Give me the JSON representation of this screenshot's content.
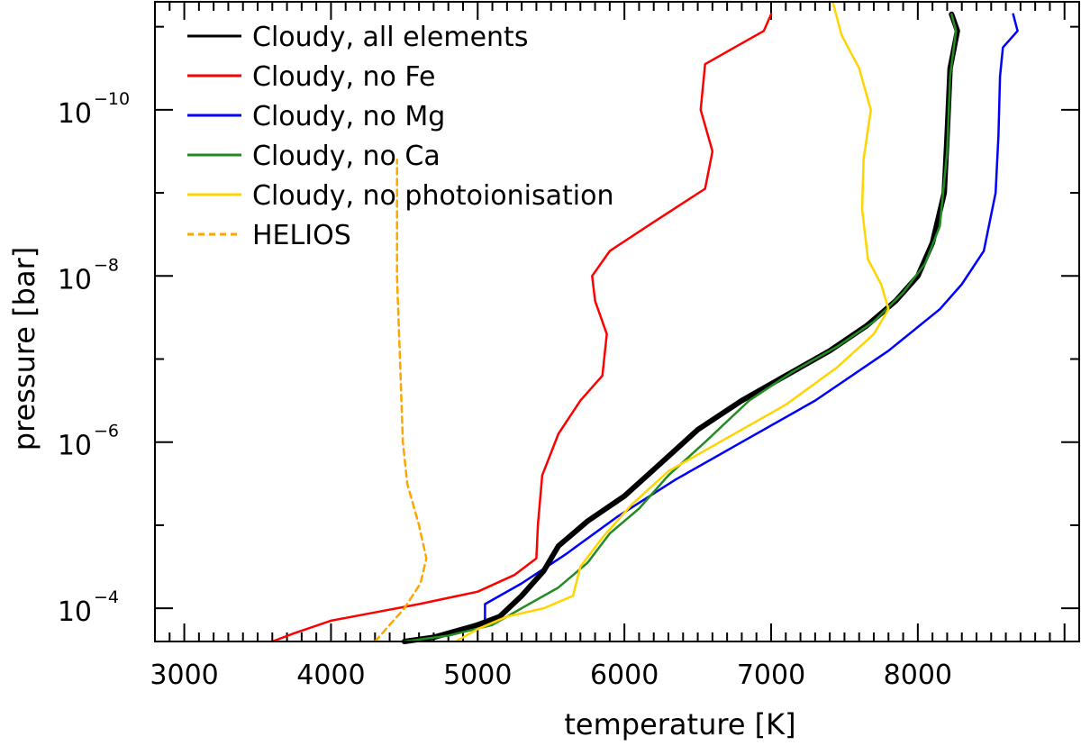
{
  "chart_data": {
    "type": "line",
    "xlabel": "temperature [K]",
    "ylabel": "pressure [bar]",
    "xlim": [
      2800,
      9100
    ],
    "ylog": true,
    "ylim_exponent": [
      -3.6,
      -11.3
    ],
    "x_ticks": [
      3000,
      4000,
      5000,
      6000,
      7000,
      8000
    ],
    "x_tick_labels": [
      "3000",
      "4000",
      "5000",
      "6000",
      "7000",
      "8000"
    ],
    "y_ticks": [
      {
        "base": "10",
        "exp": "−4",
        "value": -4
      },
      {
        "base": "10",
        "exp": "−6",
        "value": -6
      },
      {
        "base": "10",
        "exp": "−8",
        "value": -8
      },
      {
        "base": "10",
        "exp": "−10",
        "value": -10
      }
    ],
    "legend_position": "top-left",
    "series": [
      {
        "name": "Cloudy, all elements",
        "color": "#000000",
        "dash": "solid",
        "points": [
          [
            4500,
            -3.6
          ],
          [
            4700,
            -3.65
          ],
          [
            5000,
            -3.8
          ],
          [
            5150,
            -3.9
          ],
          [
            5300,
            -4.15
          ],
          [
            5450,
            -4.45
          ],
          [
            5550,
            -4.75
          ],
          [
            5750,
            -5.05
          ],
          [
            6000,
            -5.35
          ],
          [
            6250,
            -5.75
          ],
          [
            6500,
            -6.15
          ],
          [
            6800,
            -6.5
          ],
          [
            7100,
            -6.8
          ],
          [
            7400,
            -7.1
          ],
          [
            7650,
            -7.4
          ],
          [
            7850,
            -7.7
          ],
          [
            8000,
            -8.0
          ],
          [
            8100,
            -8.4
          ],
          [
            8180,
            -9.0
          ],
          [
            8200,
            -9.7
          ],
          [
            8220,
            -10.5
          ],
          [
            8270,
            -10.95
          ],
          [
            8230,
            -11.15
          ]
        ]
      },
      {
        "name": "Cloudy, no Fe",
        "color": "#ff0000",
        "dash": "solid",
        "points": [
          [
            3600,
            -3.6
          ],
          [
            3750,
            -3.7
          ],
          [
            4000,
            -3.85
          ],
          [
            4300,
            -3.95
          ],
          [
            4600,
            -4.05
          ],
          [
            5000,
            -4.2
          ],
          [
            5250,
            -4.4
          ],
          [
            5400,
            -4.6
          ],
          [
            5410,
            -5.0
          ],
          [
            5440,
            -5.6
          ],
          [
            5550,
            -6.1
          ],
          [
            5700,
            -6.5
          ],
          [
            5850,
            -6.8
          ],
          [
            5880,
            -7.3
          ],
          [
            5800,
            -7.7
          ],
          [
            5780,
            -8.0
          ],
          [
            5900,
            -8.3
          ],
          [
            6200,
            -8.65
          ],
          [
            6550,
            -9.05
          ],
          [
            6600,
            -9.5
          ],
          [
            6520,
            -10.0
          ],
          [
            6550,
            -10.55
          ],
          [
            6750,
            -10.75
          ],
          [
            6950,
            -10.95
          ],
          [
            7000,
            -11.15
          ]
        ]
      },
      {
        "name": "Cloudy, no Mg",
        "color": "#0000ff",
        "dash": "solid",
        "points": [
          [
            4550,
            -3.6
          ],
          [
            4800,
            -3.7
          ],
          [
            5050,
            -3.85
          ],
          [
            5050,
            -4.05
          ],
          [
            5300,
            -4.3
          ],
          [
            5600,
            -4.65
          ],
          [
            5950,
            -5.1
          ],
          [
            6350,
            -5.55
          ],
          [
            6800,
            -6.0
          ],
          [
            7300,
            -6.5
          ],
          [
            7800,
            -7.1
          ],
          [
            8150,
            -7.6
          ],
          [
            8300,
            -7.9
          ],
          [
            8450,
            -8.3
          ],
          [
            8530,
            -9.0
          ],
          [
            8550,
            -9.7
          ],
          [
            8560,
            -10.4
          ],
          [
            8580,
            -10.75
          ],
          [
            8680,
            -10.95
          ],
          [
            8650,
            -11.15
          ]
        ]
      },
      {
        "name": "Cloudy, no Ca",
        "color": "#228b22",
        "dash": "solid",
        "points": [
          [
            4500,
            -3.6
          ],
          [
            4800,
            -3.67
          ],
          [
            5100,
            -3.8
          ],
          [
            5300,
            -4.0
          ],
          [
            5550,
            -4.25
          ],
          [
            5750,
            -4.55
          ],
          [
            5900,
            -4.9
          ],
          [
            6100,
            -5.2
          ],
          [
            6300,
            -5.6
          ],
          [
            6550,
            -6.0
          ],
          [
            6850,
            -6.5
          ],
          [
            7150,
            -6.85
          ],
          [
            7450,
            -7.15
          ],
          [
            7700,
            -7.45
          ],
          [
            7900,
            -7.8
          ],
          [
            8050,
            -8.15
          ],
          [
            8150,
            -8.6
          ],
          [
            8200,
            -9.5
          ],
          [
            8220,
            -10.4
          ],
          [
            8260,
            -10.95
          ],
          [
            8230,
            -11.15
          ]
        ]
      },
      {
        "name": "Cloudy, no photoionisation",
        "color": "#ffd400",
        "dash": "solid",
        "points": [
          [
            4850,
            -3.6
          ],
          [
            5000,
            -3.75
          ],
          [
            5200,
            -3.9
          ],
          [
            5450,
            -4.0
          ],
          [
            5650,
            -4.15
          ],
          [
            5700,
            -4.5
          ],
          [
            5850,
            -4.85
          ],
          [
            6050,
            -5.25
          ],
          [
            6300,
            -5.65
          ],
          [
            6700,
            -6.05
          ],
          [
            7100,
            -6.45
          ],
          [
            7450,
            -6.9
          ],
          [
            7700,
            -7.3
          ],
          [
            7800,
            -7.6
          ],
          [
            7750,
            -7.9
          ],
          [
            7660,
            -8.2
          ],
          [
            7620,
            -8.8
          ],
          [
            7630,
            -9.4
          ],
          [
            7680,
            -10.0
          ],
          [
            7600,
            -10.5
          ],
          [
            7480,
            -10.9
          ],
          [
            7420,
            -11.3
          ]
        ]
      },
      {
        "name": "HELIOS",
        "color": "#ffa500",
        "dash": "dashed",
        "points": [
          [
            4300,
            -3.6
          ],
          [
            4400,
            -3.8
          ],
          [
            4500,
            -4.0
          ],
          [
            4610,
            -4.3
          ],
          [
            4650,
            -4.6
          ],
          [
            4600,
            -5.0
          ],
          [
            4520,
            -5.5
          ],
          [
            4490,
            -6.0
          ],
          [
            4480,
            -6.5
          ],
          [
            4470,
            -7.0
          ],
          [
            4460,
            -7.5
          ],
          [
            4450,
            -8.0
          ],
          [
            4450,
            -8.6
          ],
          [
            4450,
            -9.2
          ],
          [
            4450,
            -9.4
          ]
        ]
      }
    ]
  }
}
